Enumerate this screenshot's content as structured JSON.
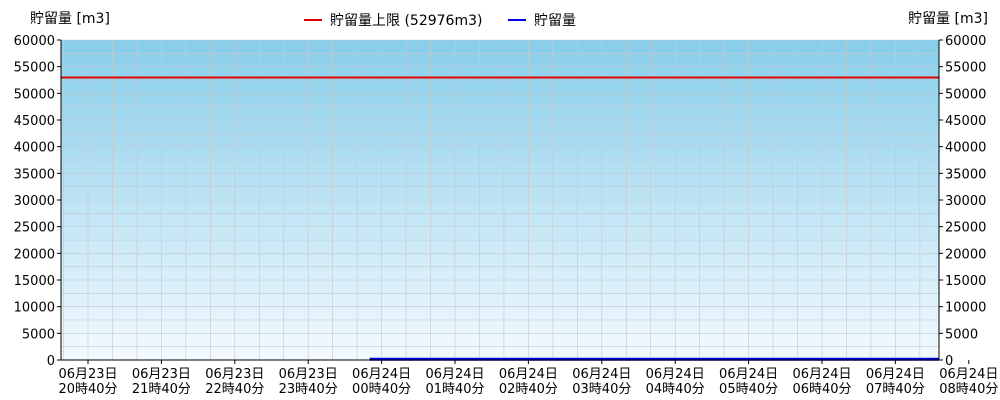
{
  "chart_data": {
    "type": "line",
    "yunit_left": "貯留量 [m3]",
    "yunit_right": "貯留量 [m3]",
    "ylim": [
      0,
      60000
    ],
    "yticks": [
      "0",
      "5000",
      "10000",
      "15000",
      "20000",
      "25000",
      "30000",
      "35000",
      "40000",
      "45000",
      "50000",
      "55000",
      "60000"
    ],
    "x_ticks": [
      {
        "date": "06月23日",
        "time": "20時40分"
      },
      {
        "date": "06月23日",
        "time": "21時40分"
      },
      {
        "date": "06月23日",
        "time": "22時40分"
      },
      {
        "date": "06月23日",
        "time": "23時40分"
      },
      {
        "date": "06月24日",
        "time": "00時40分"
      },
      {
        "date": "06月24日",
        "time": "01時40分"
      },
      {
        "date": "06月24日",
        "time": "02時40分"
      },
      {
        "date": "06月24日",
        "time": "03時40分"
      },
      {
        "date": "06月24日",
        "time": "04時40分"
      },
      {
        "date": "06月24日",
        "time": "05時40分"
      },
      {
        "date": "06月24日",
        "time": "06時40分"
      },
      {
        "date": "06月24日",
        "time": "07時40分"
      },
      {
        "date": "06月24日",
        "time": "08時40分"
      }
    ],
    "grid": true,
    "legend_position": "top-center",
    "series": [
      {
        "name": "貯留量上限 (52976m3)",
        "color": "#e00000",
        "start_hour": 0,
        "end_hour": 12,
        "value": 52976
      },
      {
        "name": "貯留量",
        "color": "#0000e0",
        "start_hour": 4,
        "end_hour": 12,
        "value": 150
      }
    ],
    "colors": {
      "plot_top": "#87cdea",
      "plot_bottom": "#f3faff",
      "grid": "#c8c8c8"
    }
  }
}
